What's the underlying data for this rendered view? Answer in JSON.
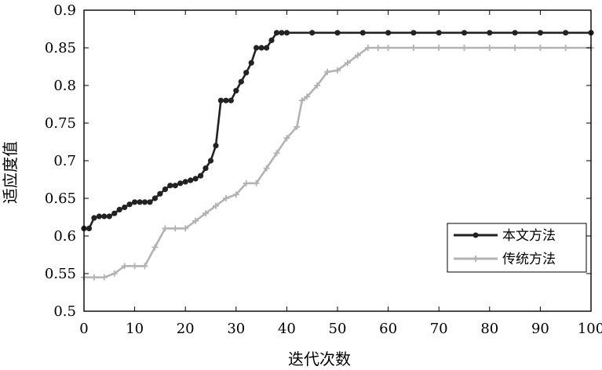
{
  "chart_data": {
    "type": "line",
    "title": "",
    "xlabel": "迭代次数",
    "ylabel": "适应度值",
    "xlim": [
      0,
      100
    ],
    "ylim": [
      0.5,
      0.9
    ],
    "xticks": [
      0,
      10,
      20,
      30,
      40,
      50,
      60,
      70,
      80,
      90,
      100
    ],
    "yticks": [
      0.5,
      0.55,
      0.6,
      0.65,
      0.7,
      0.75,
      0.8,
      0.85,
      0.9
    ],
    "xtick_labels": [
      "0",
      "10",
      "20",
      "30",
      "40",
      "50",
      "60",
      "70",
      "80",
      "90",
      "100"
    ],
    "ytick_labels": [
      "0.5",
      "0.55",
      "0.6",
      "0.65",
      "0.7",
      "0.75",
      "0.8",
      "0.85",
      "0.9"
    ],
    "grid": false,
    "legend_position": "bottom-right",
    "series": [
      {
        "name": "本文方法",
        "color": "#222222",
        "marker": "circle",
        "x": [
          0,
          1,
          2,
          3,
          4,
          5,
          6,
          7,
          8,
          9,
          10,
          11,
          12,
          13,
          14,
          15,
          16,
          17,
          18,
          19,
          20,
          21,
          22,
          23,
          24,
          25,
          26,
          27,
          28,
          29,
          30,
          31,
          32,
          33,
          34,
          35,
          36,
          37,
          38,
          39,
          40,
          45,
          50,
          55,
          60,
          65,
          70,
          75,
          80,
          85,
          90,
          95,
          100
        ],
        "y": [
          0.61,
          0.61,
          0.624,
          0.626,
          0.626,
          0.626,
          0.63,
          0.635,
          0.638,
          0.642,
          0.645,
          0.645,
          0.645,
          0.645,
          0.65,
          0.656,
          0.662,
          0.667,
          0.667,
          0.67,
          0.672,
          0.674,
          0.676,
          0.68,
          0.69,
          0.7,
          0.72,
          0.78,
          0.78,
          0.78,
          0.793,
          0.805,
          0.817,
          0.83,
          0.85,
          0.85,
          0.85,
          0.86,
          0.87,
          0.87,
          0.87,
          0.87,
          0.87,
          0.87,
          0.87,
          0.87,
          0.87,
          0.87,
          0.87,
          0.87,
          0.87,
          0.87,
          0.87
        ]
      },
      {
        "name": "传统方法",
        "color": "#b3b3b3",
        "marker": "plus",
        "x": [
          0,
          2,
          4,
          6,
          8,
          10,
          12,
          14,
          16,
          18,
          20,
          22,
          24,
          26,
          28,
          30,
          32,
          34,
          36,
          38,
          40,
          42,
          43,
          44,
          46,
          48,
          50,
          52,
          54,
          56,
          58,
          60,
          65,
          70,
          75,
          80,
          85,
          90,
          95,
          100
        ],
        "y": [
          0.545,
          0.545,
          0.545,
          0.55,
          0.56,
          0.56,
          0.56,
          0.585,
          0.61,
          0.61,
          0.61,
          0.62,
          0.63,
          0.64,
          0.65,
          0.655,
          0.67,
          0.67,
          0.69,
          0.71,
          0.73,
          0.745,
          0.78,
          0.785,
          0.8,
          0.818,
          0.82,
          0.83,
          0.84,
          0.85,
          0.85,
          0.85,
          0.85,
          0.85,
          0.85,
          0.85,
          0.85,
          0.85,
          0.85,
          0.85
        ]
      }
    ]
  }
}
